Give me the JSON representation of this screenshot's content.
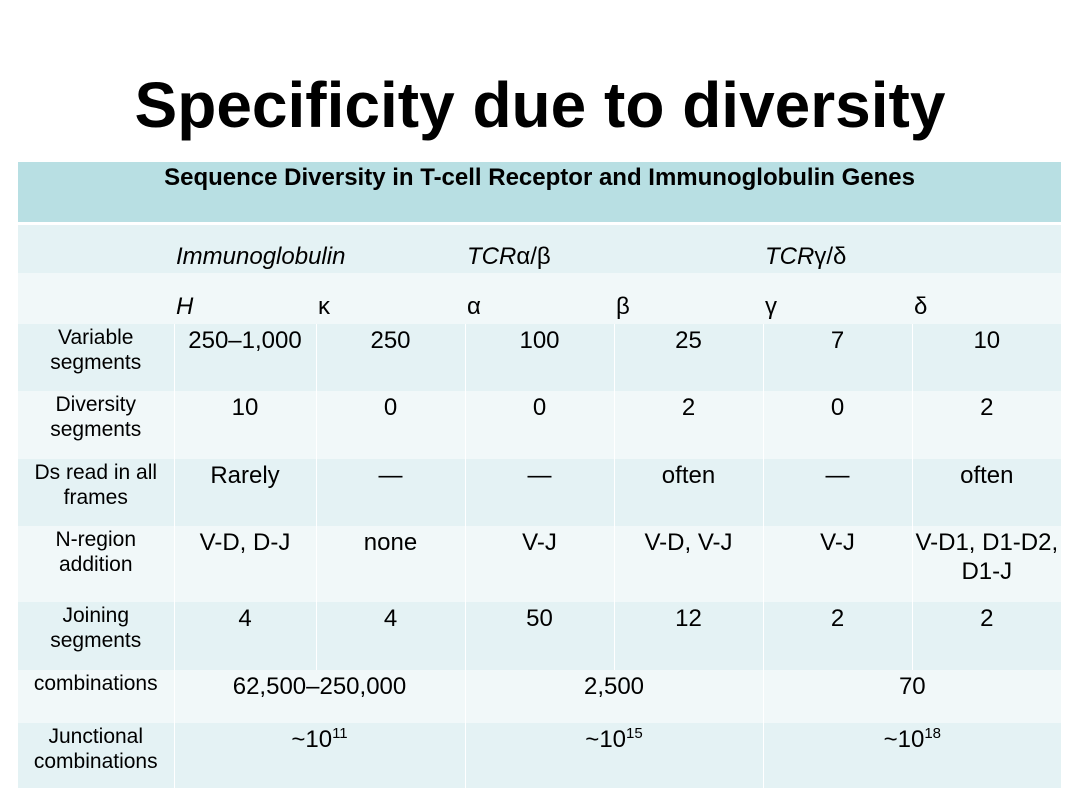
{
  "title": "Specificity due to diversity",
  "table": {
    "caption": "Sequence Diversity in T-cell Receptor and Immunoglobulin Genes",
    "groups": [
      {
        "prefix": "Immunoglobulin",
        "suffix": ""
      },
      {
        "prefix": "TCR",
        "suffix": "α/β"
      },
      {
        "prefix": "TCR",
        "suffix": "γ/δ"
      }
    ],
    "genes": [
      "H",
      "κ",
      "α",
      "β",
      "γ",
      "δ"
    ],
    "rows": [
      {
        "label": "Variable segments",
        "values": [
          "250–1,000",
          "250",
          "100",
          "25",
          "7",
          "10"
        ]
      },
      {
        "label": "Diversity segments",
        "values": [
          "10",
          "0",
          "0",
          "2",
          "0",
          "2"
        ]
      },
      {
        "label": "Ds read in all frames",
        "values": [
          "Rarely",
          "—",
          "—",
          "often",
          "—",
          "often"
        ]
      },
      {
        "label": "N-region addition",
        "values": [
          "V-D, D-J",
          "none",
          "V-J",
          "V-D, V-J",
          "V-J",
          "V-D1, D1-D2, D1-J"
        ]
      },
      {
        "label": "Joining segments",
        "values": [
          "4",
          "4",
          "50",
          "12",
          "2",
          "2"
        ]
      }
    ],
    "combinations": {
      "label": "combinations",
      "values": [
        "62,500–250,000",
        "2,500",
        "70"
      ]
    },
    "junctional": {
      "label": "Junctional combinations",
      "values": [
        {
          "base": "~10",
          "exp": "11"
        },
        {
          "base": "~10",
          "exp": "15"
        },
        {
          "base": "~10",
          "exp": "18"
        }
      ]
    }
  }
}
